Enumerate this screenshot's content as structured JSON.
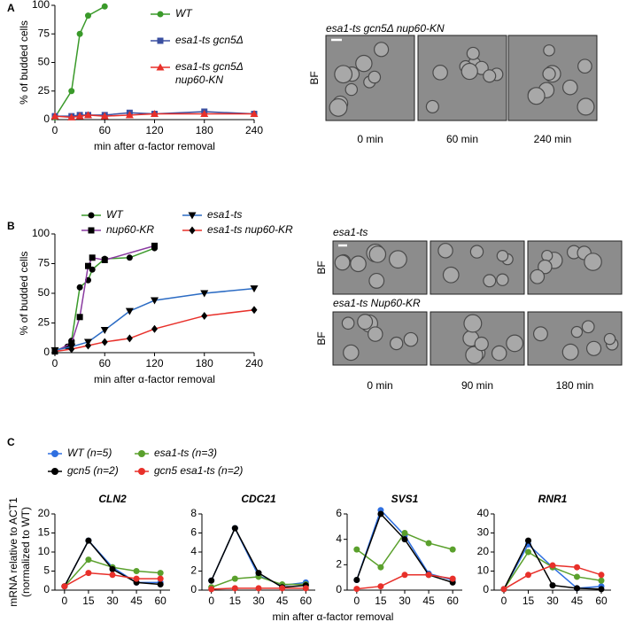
{
  "panels": {
    "labels": [
      "A",
      "B",
      "C"
    ],
    "image_a": {
      "title": "esa1-ts gcn5Δ nup60-KN",
      "channel": "BF",
      "captions": [
        "0 min",
        "60 min",
        "240 min"
      ]
    },
    "image_b": {
      "titles": [
        "esa1-ts",
        "esa1-ts Nup60-KR"
      ],
      "channels": [
        "BF",
        "BF"
      ],
      "captions": [
        "0 min",
        "90 min",
        "180 min"
      ]
    }
  },
  "chart_data": [
    {
      "type": "line",
      "x_label": "min after α-factor removal",
      "y_label": "% of budded cells",
      "xlim": [
        0,
        240
      ],
      "xticks": [
        0,
        60,
        120,
        180,
        240
      ],
      "ylim": [
        0,
        100
      ],
      "yticks": [
        0,
        25,
        50,
        75,
        100
      ],
      "series": [
        {
          "name": "WT",
          "color": "#3a9a2a",
          "marker_color": "#3a9a2a",
          "marker": "circle",
          "x": [
            0,
            20,
            30,
            40,
            60
          ],
          "values": [
            2,
            25,
            75,
            91,
            99
          ]
        },
        {
          "name": "esa1-ts gcn5Δ",
          "color": "#3a4fa0",
          "marker_color": "#3a4fa0",
          "marker": "square",
          "x": [
            0,
            20,
            30,
            40,
            60,
            90,
            120,
            180,
            240
          ],
          "values": [
            3,
            3,
            4,
            4,
            4,
            6,
            5,
            7,
            5
          ]
        },
        {
          "name": "esa1-ts gcn5Δ nup60-KN",
          "color": "#e8302a",
          "marker_color": "#e8302a",
          "marker": "triangle",
          "x": [
            0,
            20,
            30,
            40,
            60,
            90,
            120,
            180,
            240
          ],
          "values": [
            3,
            2,
            3,
            4,
            3,
            4,
            5,
            5,
            5
          ]
        }
      ]
    },
    {
      "type": "line",
      "x_label": "min after α-factor removal",
      "y_label": "% of budded cells",
      "xlim": [
        0,
        240
      ],
      "xticks": [
        0,
        60,
        120,
        180,
        240
      ],
      "ylim": [
        0,
        100
      ],
      "yticks": [
        0,
        25,
        50,
        75,
        100
      ],
      "series": [
        {
          "name": "WT",
          "color": "#3a9a2a",
          "marker_color": "#000000",
          "marker": "circle",
          "x": [
            0,
            15,
            20,
            30,
            40,
            45,
            60,
            90,
            120
          ],
          "values": [
            2,
            5,
            10,
            55,
            61,
            70,
            79,
            80,
            88
          ]
        },
        {
          "name": "nup60-KR",
          "color": "#8a3aa0",
          "marker_color": "#000000",
          "marker": "square",
          "x": [
            0,
            20,
            30,
            40,
            45,
            60,
            120
          ],
          "values": [
            1,
            8,
            30,
            73,
            80,
            78,
            90
          ]
        },
        {
          "name": "esa1-ts",
          "color": "#2c6cc4",
          "marker_color": "#000000",
          "marker": "triangle-down",
          "x": [
            0,
            20,
            40,
            60,
            90,
            120,
            180,
            240
          ],
          "values": [
            2,
            5,
            9,
            19,
            35,
            44,
            50,
            54
          ]
        },
        {
          "name": "esa1-ts nup60-KR",
          "color": "#e8302a",
          "marker_color": "#000000",
          "marker": "diamond",
          "x": [
            0,
            20,
            40,
            60,
            90,
            120,
            180,
            240
          ],
          "values": [
            1,
            3,
            6,
            9,
            12,
            20,
            31,
            36
          ]
        }
      ]
    },
    {
      "type": "multi-line",
      "x_label": "min after α-factor removal",
      "y_label": [
        "mRNA relative to ACT1",
        "(normalized to WT)"
      ],
      "x": [
        0,
        15,
        30,
        45,
        60
      ],
      "xlim": [
        -6,
        66
      ],
      "xticks": [
        0,
        15,
        30,
        45,
        60
      ],
      "series": [
        {
          "name": "WT (n=5)",
          "color": "#2f6fe0"
        },
        {
          "name": "esa1-ts (n=3)",
          "color": "#5aa02c"
        },
        {
          "name": "gcn5 (n=2)",
          "color": "#000000"
        },
        {
          "name": "gcn5 esa1-ts (n=2)",
          "color": "#e8302a"
        }
      ],
      "subplots": [
        {
          "title": "CLN2",
          "ylim": [
            0,
            20
          ],
          "yticks": [
            0,
            5,
            10,
            15,
            20
          ],
          "series_values": [
            [
              1,
              13,
              6,
              2,
              2
            ],
            [
              1,
              8,
              6,
              5,
              4.5
            ],
            [
              1,
              13,
              5.5,
              2,
              1.5
            ],
            [
              1,
              4.5,
              4,
              3,
              3
            ]
          ]
        },
        {
          "title": "CDC21",
          "ylim": [
            0,
            8
          ],
          "yticks": [
            0,
            2,
            4,
            6,
            8
          ],
          "series_values": [
            [
              1,
              6.5,
              1.5,
              0.5,
              0.8
            ],
            [
              0.3,
              1.2,
              1.4,
              0.6,
              0.6
            ],
            [
              1,
              6.5,
              1.8,
              0.3,
              0.5
            ],
            [
              0.1,
              0.2,
              0.2,
              0.2,
              0.2
            ]
          ]
        },
        {
          "title": "SVS1",
          "ylim": [
            0,
            6
          ],
          "yticks": [
            0,
            2,
            4,
            6
          ],
          "series_values": [
            [
              0.8,
              6.3,
              4.3,
              1.3,
              0.8
            ],
            [
              3.2,
              1.8,
              4.5,
              3.7,
              3.2
            ],
            [
              0.8,
              6,
              4,
              1.2,
              0.6
            ],
            [
              0.1,
              0.3,
              1.2,
              1.2,
              0.9
            ]
          ]
        },
        {
          "title": "RNR1",
          "ylim": [
            0,
            40
          ],
          "yticks": [
            0,
            10,
            20,
            30,
            40
          ],
          "series_values": [
            [
              0.5,
              24,
              12,
              1,
              2
            ],
            [
              0.5,
              20,
              12,
              7,
              5
            ],
            [
              0.5,
              26,
              2.5,
              1,
              0.5
            ],
            [
              0.5,
              8,
              13,
              12,
              8
            ]
          ]
        }
      ]
    }
  ]
}
